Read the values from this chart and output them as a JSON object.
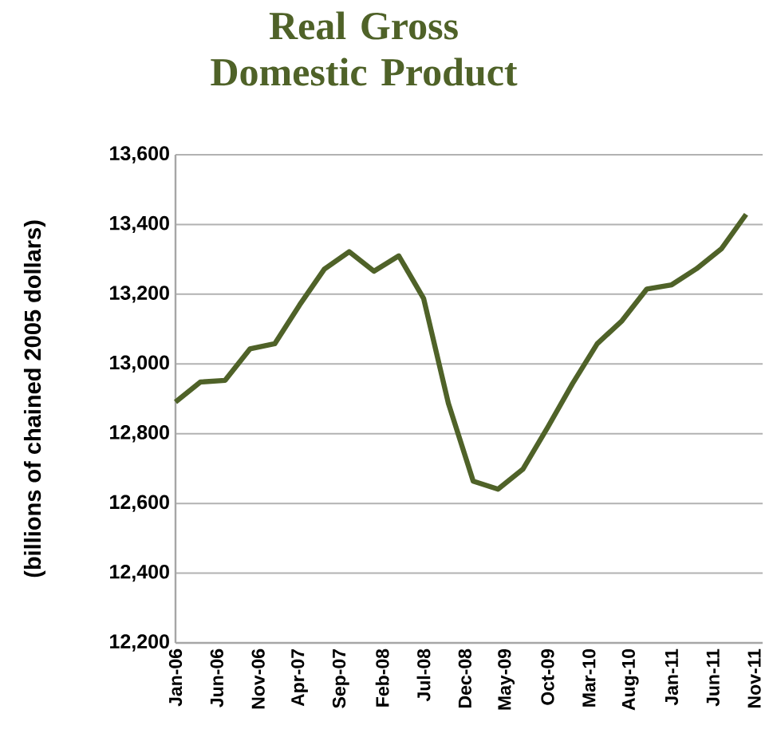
{
  "chart_data": {
    "type": "line",
    "title": "Real Gross Domestic Product",
    "ylabel": "(billions of chained 2005 dollars)",
    "x": [
      "2006-01",
      "2006-04",
      "2006-07",
      "2006-10",
      "2007-01",
      "2007-04",
      "2007-07",
      "2007-10",
      "2008-01",
      "2008-04",
      "2008-07",
      "2008-10",
      "2009-01",
      "2009-04",
      "2009-07",
      "2009-10",
      "2010-01",
      "2010-04",
      "2010-07",
      "2010-10",
      "2011-01",
      "2011-04",
      "2011-07",
      "2011-10"
    ],
    "series": [
      {
        "color": "#4f6228",
        "values": [
          12891,
          12948,
          12953,
          13043,
          13058,
          13169,
          13272,
          13322,
          13266,
          13310,
          13188,
          12887,
          12664,
          12641,
          12698,
          12818,
          12943,
          13058,
          13124,
          13215,
          13227,
          13273,
          13330,
          13429
        ]
      }
    ],
    "xlim": [
      "2006-01",
      "2011-12"
    ],
    "xticks": [
      {
        "value": "2006-01",
        "label": "Jan-06"
      },
      {
        "value": "2006-06",
        "label": "Jun-06"
      },
      {
        "value": "2006-11",
        "label": "Nov-06"
      },
      {
        "value": "2007-04",
        "label": "Apr-07"
      },
      {
        "value": "2007-09",
        "label": "Sep-07"
      },
      {
        "value": "2008-02",
        "label": "Feb-08"
      },
      {
        "value": "2008-07",
        "label": "Jul-08"
      },
      {
        "value": "2008-12",
        "label": "Dec-08"
      },
      {
        "value": "2009-05",
        "label": "May-09"
      },
      {
        "value": "2009-10",
        "label": "Oct-09"
      },
      {
        "value": "2010-03",
        "label": "Mar-10"
      },
      {
        "value": "2010-08",
        "label": "Aug-10"
      },
      {
        "value": "2011-01",
        "label": "Jan-11"
      },
      {
        "value": "2011-06",
        "label": "Jun-11"
      },
      {
        "value": "2011-11",
        "label": "Nov-11"
      }
    ],
    "ylim": [
      12200,
      13600
    ],
    "yticks": [
      {
        "value": 12200,
        "label": "12,200"
      },
      {
        "value": 12400,
        "label": "12,400"
      },
      {
        "value": 12600,
        "label": "12,600"
      },
      {
        "value": 12800,
        "label": "12,800"
      },
      {
        "value": 13000,
        "label": "13,000"
      },
      {
        "value": 13200,
        "label": "13,200"
      },
      {
        "value": 13400,
        "label": "13,400"
      },
      {
        "value": 13600,
        "label": "13,600"
      }
    ],
    "grid": "y",
    "marker": "none",
    "line_style": "solid"
  }
}
